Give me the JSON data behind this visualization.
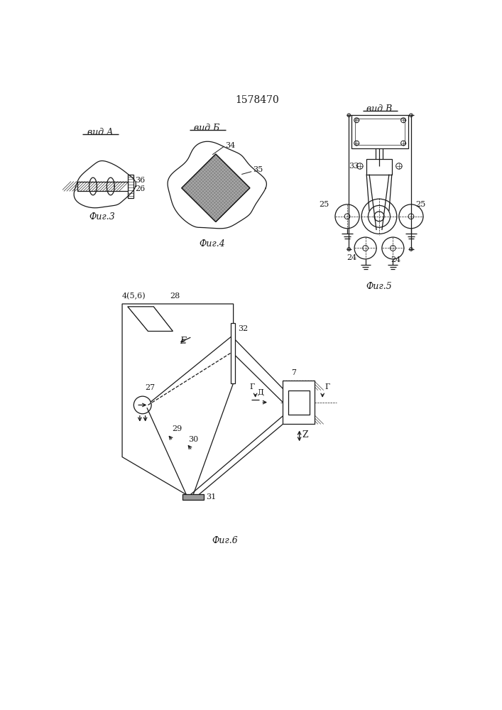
{
  "title": "1578470",
  "lc": "#1a1a1a",
  "fig3_label": "Фиг.3",
  "fig4_label": "Фиг.4",
  "fig5_label": "Фиг.5",
  "fig6_label": "Фиг.6"
}
